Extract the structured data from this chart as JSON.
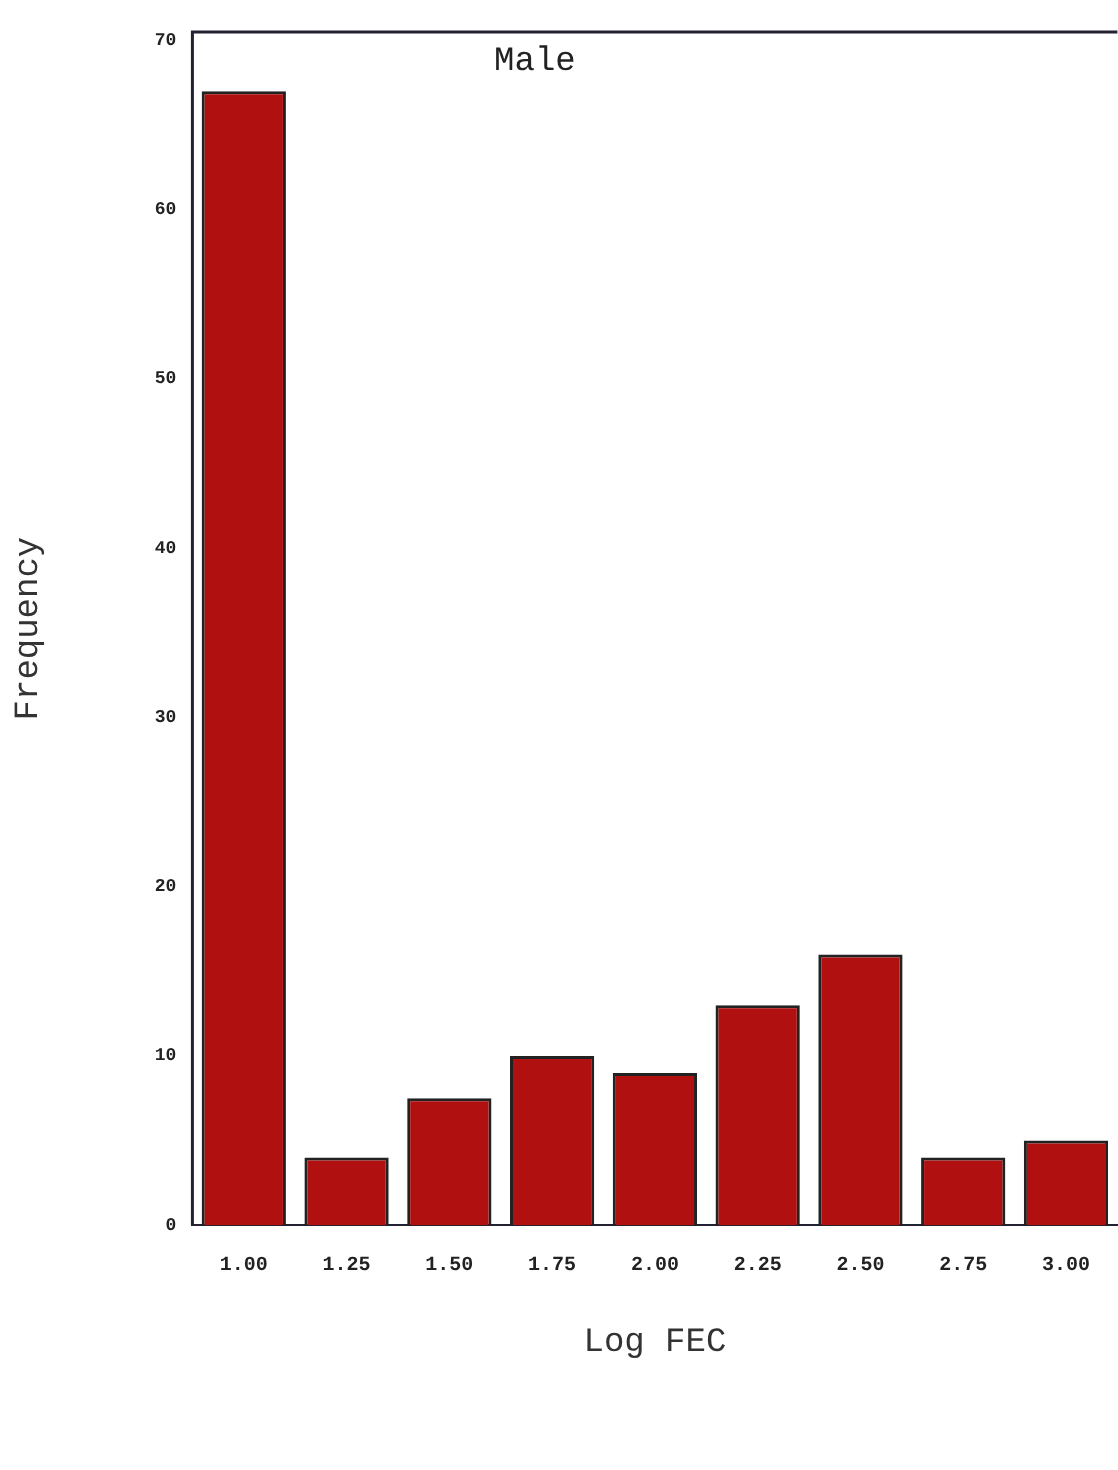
{
  "chart_data": {
    "type": "bar",
    "title": "Male",
    "xlabel": "Log FEC",
    "ylabel": "Frequency",
    "categories": [
      "1.00",
      "1.25",
      "1.50",
      "1.75",
      "2.00",
      "2.25",
      "2.50",
      "2.75",
      "3.00"
    ],
    "values": [
      67,
      4,
      7.5,
      10,
      9,
      13,
      16,
      4,
      5
    ],
    "color": "#b01010",
    "ylim": [
      0,
      70.5
    ],
    "yticks": [
      0,
      10,
      20,
      30,
      40,
      50,
      60,
      70
    ],
    "grid": false
  }
}
